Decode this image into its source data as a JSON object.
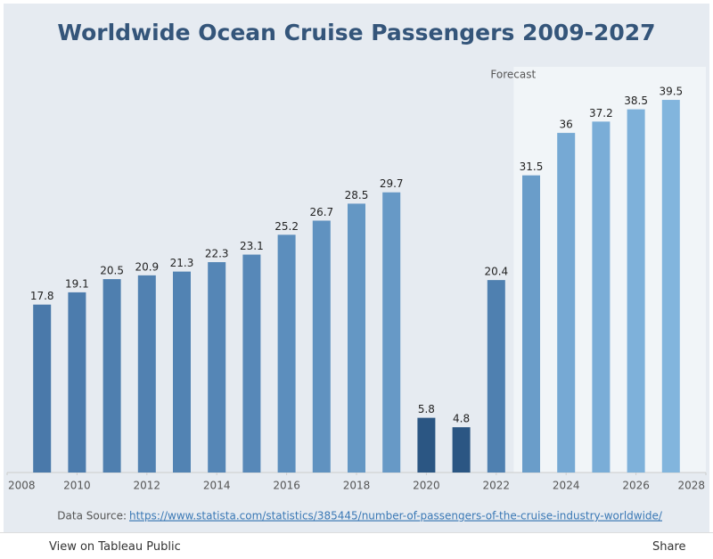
{
  "chart_data": {
    "type": "bar",
    "title": "Worldwide Ocean Cruise Passengers 2009-2027",
    "x": [
      2009,
      2010,
      2011,
      2012,
      2013,
      2014,
      2015,
      2016,
      2017,
      2018,
      2019,
      2020,
      2021,
      2022,
      2023,
      2024,
      2025,
      2026,
      2027
    ],
    "values": [
      17.8,
      19.1,
      20.5,
      20.9,
      21.3,
      22.3,
      23.1,
      25.2,
      26.7,
      28.5,
      29.7,
      5.8,
      4.8,
      20.4,
      31.5,
      36,
      37.2,
      38.5,
      39.5
    ],
    "colors": [
      "#4a79aa",
      "#4c7cad",
      "#4f7faf",
      "#5181b1",
      "#5283b3",
      "#5586b6",
      "#5788b8",
      "#5c8ebd",
      "#6092c0",
      "#6497c4",
      "#6799c6",
      "#2b5683",
      "#2b5683",
      "#4f80b0",
      "#6a9dc9",
      "#76a9d4",
      "#7aadd7",
      "#7eb1da",
      "#82b5dd"
    ],
    "xlim": [
      2008,
      2028
    ],
    "xticks": [
      2008,
      2010,
      2012,
      2014,
      2016,
      2018,
      2020,
      2022,
      2024,
      2026,
      2028
    ],
    "ylim": [
      0,
      43
    ],
    "forecast_label": "Forecast",
    "forecast_from": 2023
  },
  "source_label": "Data Source:",
  "source_url": "https://www.statista.com/statistics/385445/number-of-passengers-of-the-cruise-industry-worldwide/",
  "toolbar": {
    "view": "View on Tableau Public",
    "share": "Share"
  }
}
